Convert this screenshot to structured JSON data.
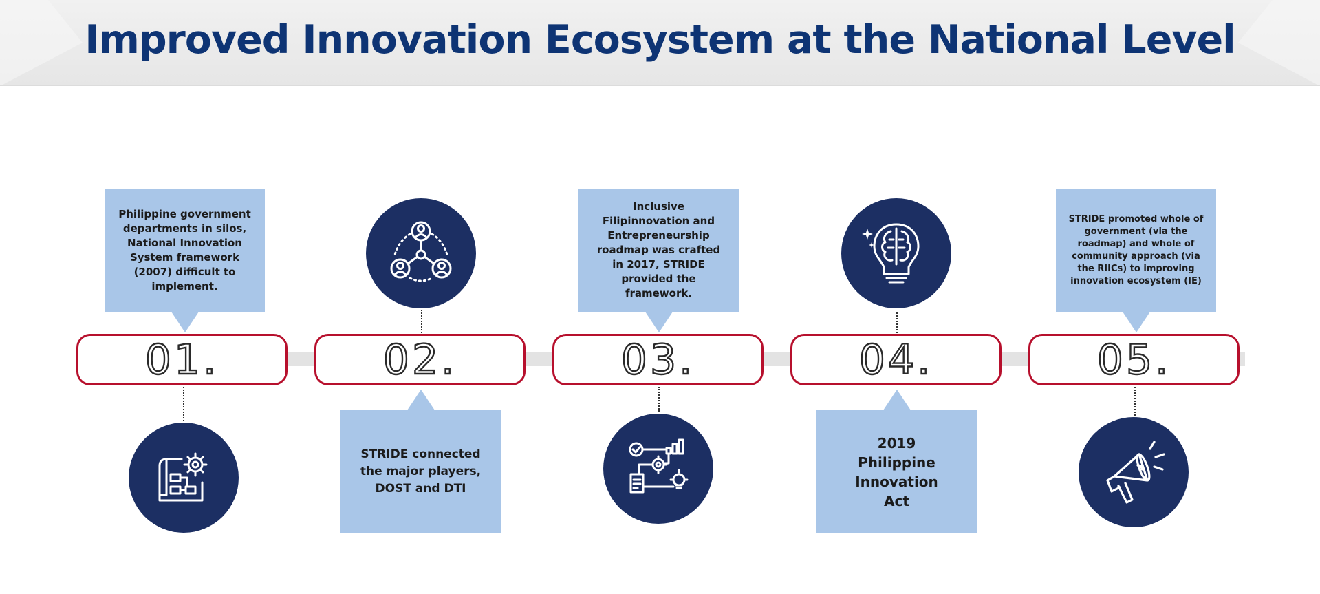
{
  "header": {
    "title": "Improved Innovation Ecosystem at the National Level"
  },
  "colors": {
    "title": "#0e3474",
    "box_border": "#b7102d",
    "callout": "#a9c6e8",
    "icon_circle": "#1c2f63",
    "track": "#e3e3e3"
  },
  "steps": [
    {
      "number": "01.",
      "text": "Philippine government departments in silos, National Innovation System framework (2007) difficult to implement.",
      "icon": "blueprint-gear-icon"
    },
    {
      "number": "02.",
      "text": "STRIDE connected the major players, DOST and DTI",
      "icon": "connected-people-icon"
    },
    {
      "number": "03.",
      "text": "Inclusive Filipinnovation and Entrepreneurship roadmap was crafted in 2017, STRIDE provided the framework.",
      "icon": "process-roadmap-icon"
    },
    {
      "number": "04.",
      "text": "2019 Philippine Innovation Act",
      "icon": "brain-lightbulb-icon"
    },
    {
      "number": "05.",
      "text": "STRIDE promoted whole of government (via the roadmap) and whole of community approach (via the RIICs) to improving innovation ecosystem (IE)",
      "icon": "megaphone-icon"
    }
  ]
}
